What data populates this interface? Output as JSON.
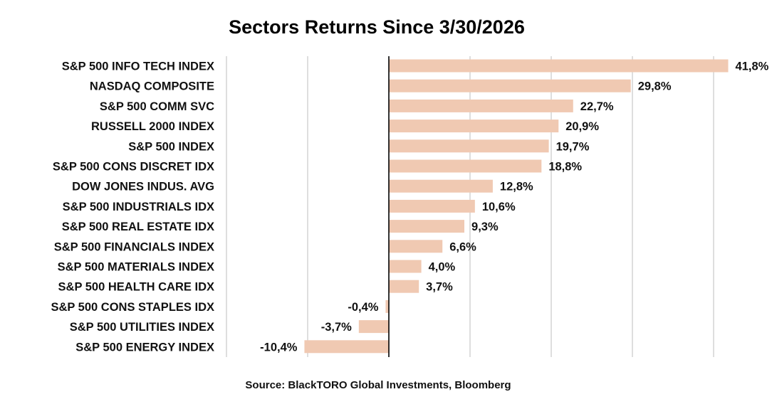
{
  "chart_data": {
    "type": "bar",
    "orientation": "horizontal",
    "title": "Sectors Returns Since 3/30/2026",
    "source": "Source: BlackTORO Global Investments, Bloomberg",
    "categories": [
      "S&P 500 INFO TECH INDEX",
      "NASDAQ COMPOSITE",
      "S&P 500 COMM SVC",
      "RUSSELL 2000 INDEX",
      "S&P 500 INDEX",
      "S&P 500 CONS DISCRET IDX",
      "DOW JONES INDUS. AVG",
      "S&P 500 INDUSTRIALS IDX",
      "S&P 500 REAL ESTATE IDX",
      "S&P 500 FINANCIALS INDEX",
      "S&P 500 MATERIALS INDEX",
      "S&P 500 HEALTH CARE IDX",
      "S&P 500 CONS STAPLES IDX",
      "S&P 500 UTILITIES INDEX",
      "S&P 500 ENERGY INDEX"
    ],
    "values": [
      41.8,
      29.8,
      22.7,
      20.9,
      19.7,
      18.8,
      12.8,
      10.6,
      9.3,
      6.6,
      4.0,
      3.7,
      -0.4,
      -3.7,
      -10.4
    ],
    "value_labels": [
      "41,8%",
      "29,8%",
      "22,7%",
      "20,9%",
      "19,7%",
      "18,8%",
      "12,8%",
      "10,6%",
      "9,3%",
      "6,6%",
      "4,0%",
      "3,7%",
      "-0,4%",
      "-3,7%",
      "-10,4%"
    ],
    "xlim": [
      -20,
      45
    ],
    "xticks": [
      -20,
      -10,
      0,
      10,
      20,
      30,
      40
    ],
    "grid": "vertical",
    "bar_color": "#f0c9b2",
    "grid_color": "#d4d4d4",
    "zero_line_color": "#000000"
  }
}
